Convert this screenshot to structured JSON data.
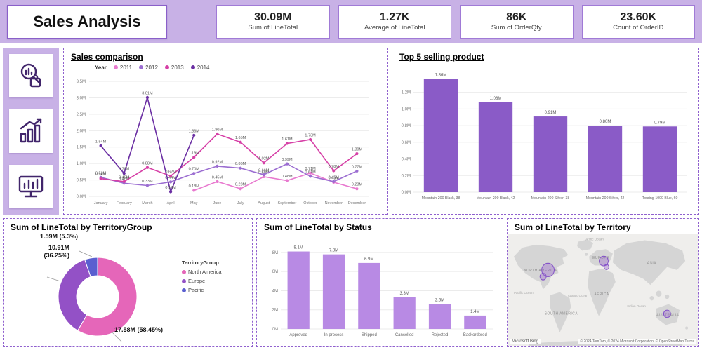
{
  "theme": {
    "band_background": "#c8b1e6",
    "panel_border": "#9061ce",
    "bar_purple": "#8a5bc7",
    "bar_light_purple": "#b88ae4"
  },
  "header": {
    "title": "Sales Analysis",
    "kpis": [
      {
        "value": "30.09M",
        "label": "Sum of LineTotal"
      },
      {
        "value": "1.27K",
        "label": "Average of LineTotal"
      },
      {
        "value": "86K",
        "label": "Sum of OrderQty"
      },
      {
        "value": "23.60K",
        "label": "Count of OrderID"
      }
    ]
  },
  "sidebar": {
    "tiles": [
      {
        "icon": "search-analytics-icon"
      },
      {
        "icon": "growth-chart-icon"
      },
      {
        "icon": "monitor-chart-icon"
      }
    ]
  },
  "chart_data": [
    {
      "id": "sales_comparison",
      "type": "line",
      "title": "Sales comparison",
      "legend_title": "Year",
      "legend_position": "top",
      "x": [
        "January",
        "February",
        "March",
        "April",
        "May",
        "June",
        "July",
        "August",
        "September",
        "October",
        "November",
        "December"
      ],
      "ylim": [
        0,
        3.5
      ],
      "yticks": [
        "0.0M",
        "0.5M",
        "1.0M",
        "1.5M",
        "2.0M",
        "2.5M",
        "3.0M",
        "3.5M"
      ],
      "series": [
        {
          "name": "2011",
          "color": "#e879cf",
          "values": [
            null,
            null,
            null,
            null,
            0.18,
            0.45,
            0.23,
            0.6,
            0.48,
            0.71,
            0.43,
            0.23
          ]
        },
        {
          "name": "2012",
          "color": "#9b6dd1",
          "values": [
            0.58,
            0.4,
            0.33,
            0.44,
            0.7,
            0.92,
            0.86,
            0.66,
            0.99,
            0.61,
            0.45,
            0.77
          ]
        },
        {
          "name": "2013",
          "color": "#d63fa6",
          "values": [
            0.54,
            0.45,
            0.88,
            0.62,
            1.19,
            1.9,
            1.65,
            1.02,
            1.61,
            1.73,
            0.78,
            1.3
          ]
        },
        {
          "name": "2014",
          "color": "#6b2fa3",
          "values": [
            1.54,
            0.7,
            3.01,
            0.14,
            1.86,
            null,
            null,
            null,
            null,
            null,
            null,
            null
          ]
        }
      ]
    },
    {
      "id": "top5",
      "type": "bar",
      "title": "Top 5 selling product",
      "categories": [
        "Mountain-200 Black, 38",
        "Mountain-200 Black, 42",
        "Mountain-200 Silver, 38",
        "Mountain-200 Silver, 42",
        "Touring-1000 Blue, 60"
      ],
      "values": [
        1.36,
        1.08,
        0.91,
        0.8,
        0.79
      ],
      "value_labels": [
        "1.36M",
        "1.08M",
        "0.91M",
        "0.80M",
        "0.79M"
      ],
      "yticks": [
        "0.0M",
        "0.2M",
        "0.4M",
        "0.6M",
        "0.8M",
        "1.0M",
        "1.2M"
      ],
      "ylim": [
        0,
        1.45
      ],
      "bar_color": "#8a5bc7"
    },
    {
      "id": "territory_group",
      "type": "donut",
      "title": "Sum of LineTotal by TerritoryGroup",
      "legend_title": "TerritoryGroup",
      "slices": [
        {
          "name": "North America",
          "callout": "17.58M (58.45%)",
          "value": 58.45,
          "color": "#e566b9"
        },
        {
          "name": "Europe",
          "callout": "10.91M (36.25%)",
          "value": 36.25,
          "color": "#9351c6"
        },
        {
          "name": "Pacific",
          "callout": "1.59M (5.3%)",
          "value": 5.3,
          "color": "#5a5fd0"
        }
      ]
    },
    {
      "id": "status",
      "type": "bar",
      "title": "Sum of LineTotal by Status",
      "categories": [
        "Approved",
        "In process",
        "Shipped",
        "Cancelled",
        "Rejected",
        "Backordered"
      ],
      "values": [
        8.1,
        7.8,
        6.9,
        3.3,
        2.6,
        1.4
      ],
      "value_labels": [
        "8.1M",
        "7.8M",
        "6.9M",
        "3.3M",
        "2.6M",
        "1.4M"
      ],
      "yticks": [
        "0M",
        "2M",
        "4M",
        "6M",
        "8M"
      ],
      "ylim": [
        0,
        8.8
      ],
      "bar_color": "#b88ae4"
    },
    {
      "id": "territory_map",
      "type": "map",
      "title": "Sum of LineTotal by Territory",
      "continent_labels": [
        "NORTH AMERICA",
        "SOUTH AMERICA",
        "EUROPE",
        "AFRICA",
        "ASIA",
        "AUSTRALIA"
      ],
      "ocean_labels": [
        "Arctic Ocean",
        "Pacific Ocean",
        "Atlantic Ocean",
        "Indian Ocean"
      ],
      "bubbles": [
        {
          "x": 57,
          "y": 48,
          "r": 9
        },
        {
          "x": 50,
          "y": 57,
          "r": 4.5
        },
        {
          "x": 137,
          "y": 36,
          "r": 6.5
        },
        {
          "x": 141,
          "y": 44,
          "r": 3.5
        },
        {
          "x": 228,
          "y": 107,
          "r": 5
        }
      ],
      "attribution_left": "Microsoft Bing",
      "attribution_right": "© 2024 TomTom, © 2024 Microsoft Corporation, © OpenStreetMap Terms"
    }
  ]
}
